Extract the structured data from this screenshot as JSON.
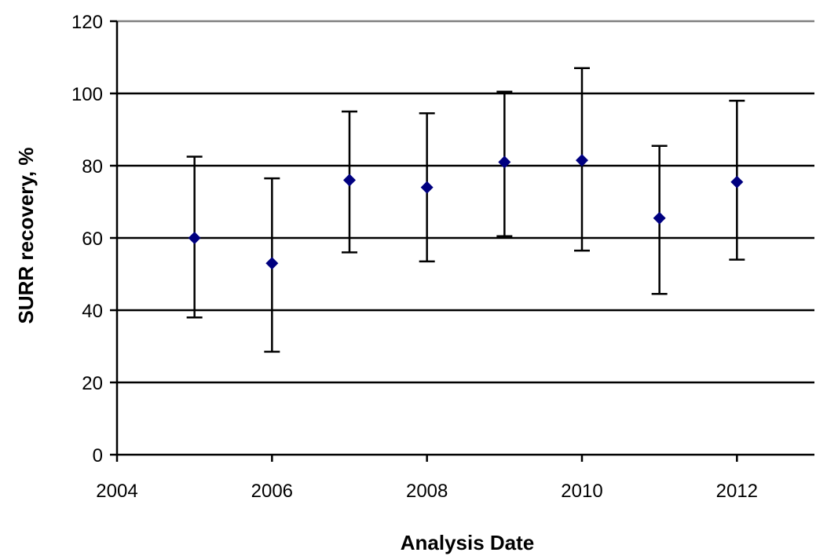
{
  "chart_data": {
    "type": "scatter",
    "title": "",
    "xlabel": "Analysis Date",
    "ylabel": "SURR recovery, %",
    "xlim": [
      2004,
      2013
    ],
    "ylim": [
      0,
      120
    ],
    "x_ticks": [
      2004,
      2006,
      2008,
      2010,
      2012
    ],
    "y_ticks": [
      0,
      20,
      40,
      60,
      80,
      100,
      120
    ],
    "x_tick_labels": [
      "2004",
      "2006",
      "2008",
      "2010",
      "2012"
    ],
    "y_tick_labels": [
      "0",
      "20",
      "40",
      "60",
      "80",
      "100",
      "120"
    ],
    "grid": "horizontal",
    "legend": "none",
    "series": [
      {
        "marker": "diamond",
        "color": "#000080",
        "error_bar_color": "#000000",
        "points": [
          {
            "x": 2005,
            "y": 60,
            "low": 38,
            "high": 82.5
          },
          {
            "x": 2006,
            "y": 53,
            "low": 28.5,
            "high": 76.5
          },
          {
            "x": 2007,
            "y": 76,
            "low": 56,
            "high": 95
          },
          {
            "x": 2008,
            "y": 74,
            "low": 53.5,
            "high": 94.5
          },
          {
            "x": 2009,
            "y": 81,
            "low": 60.5,
            "high": 100.5
          },
          {
            "x": 2010,
            "y": 81.5,
            "low": 56.5,
            "high": 107
          },
          {
            "x": 2011,
            "y": 65.5,
            "low": 44.5,
            "high": 85.5
          },
          {
            "x": 2012,
            "y": 75.5,
            "low": 54,
            "high": 98
          }
        ]
      }
    ]
  }
}
